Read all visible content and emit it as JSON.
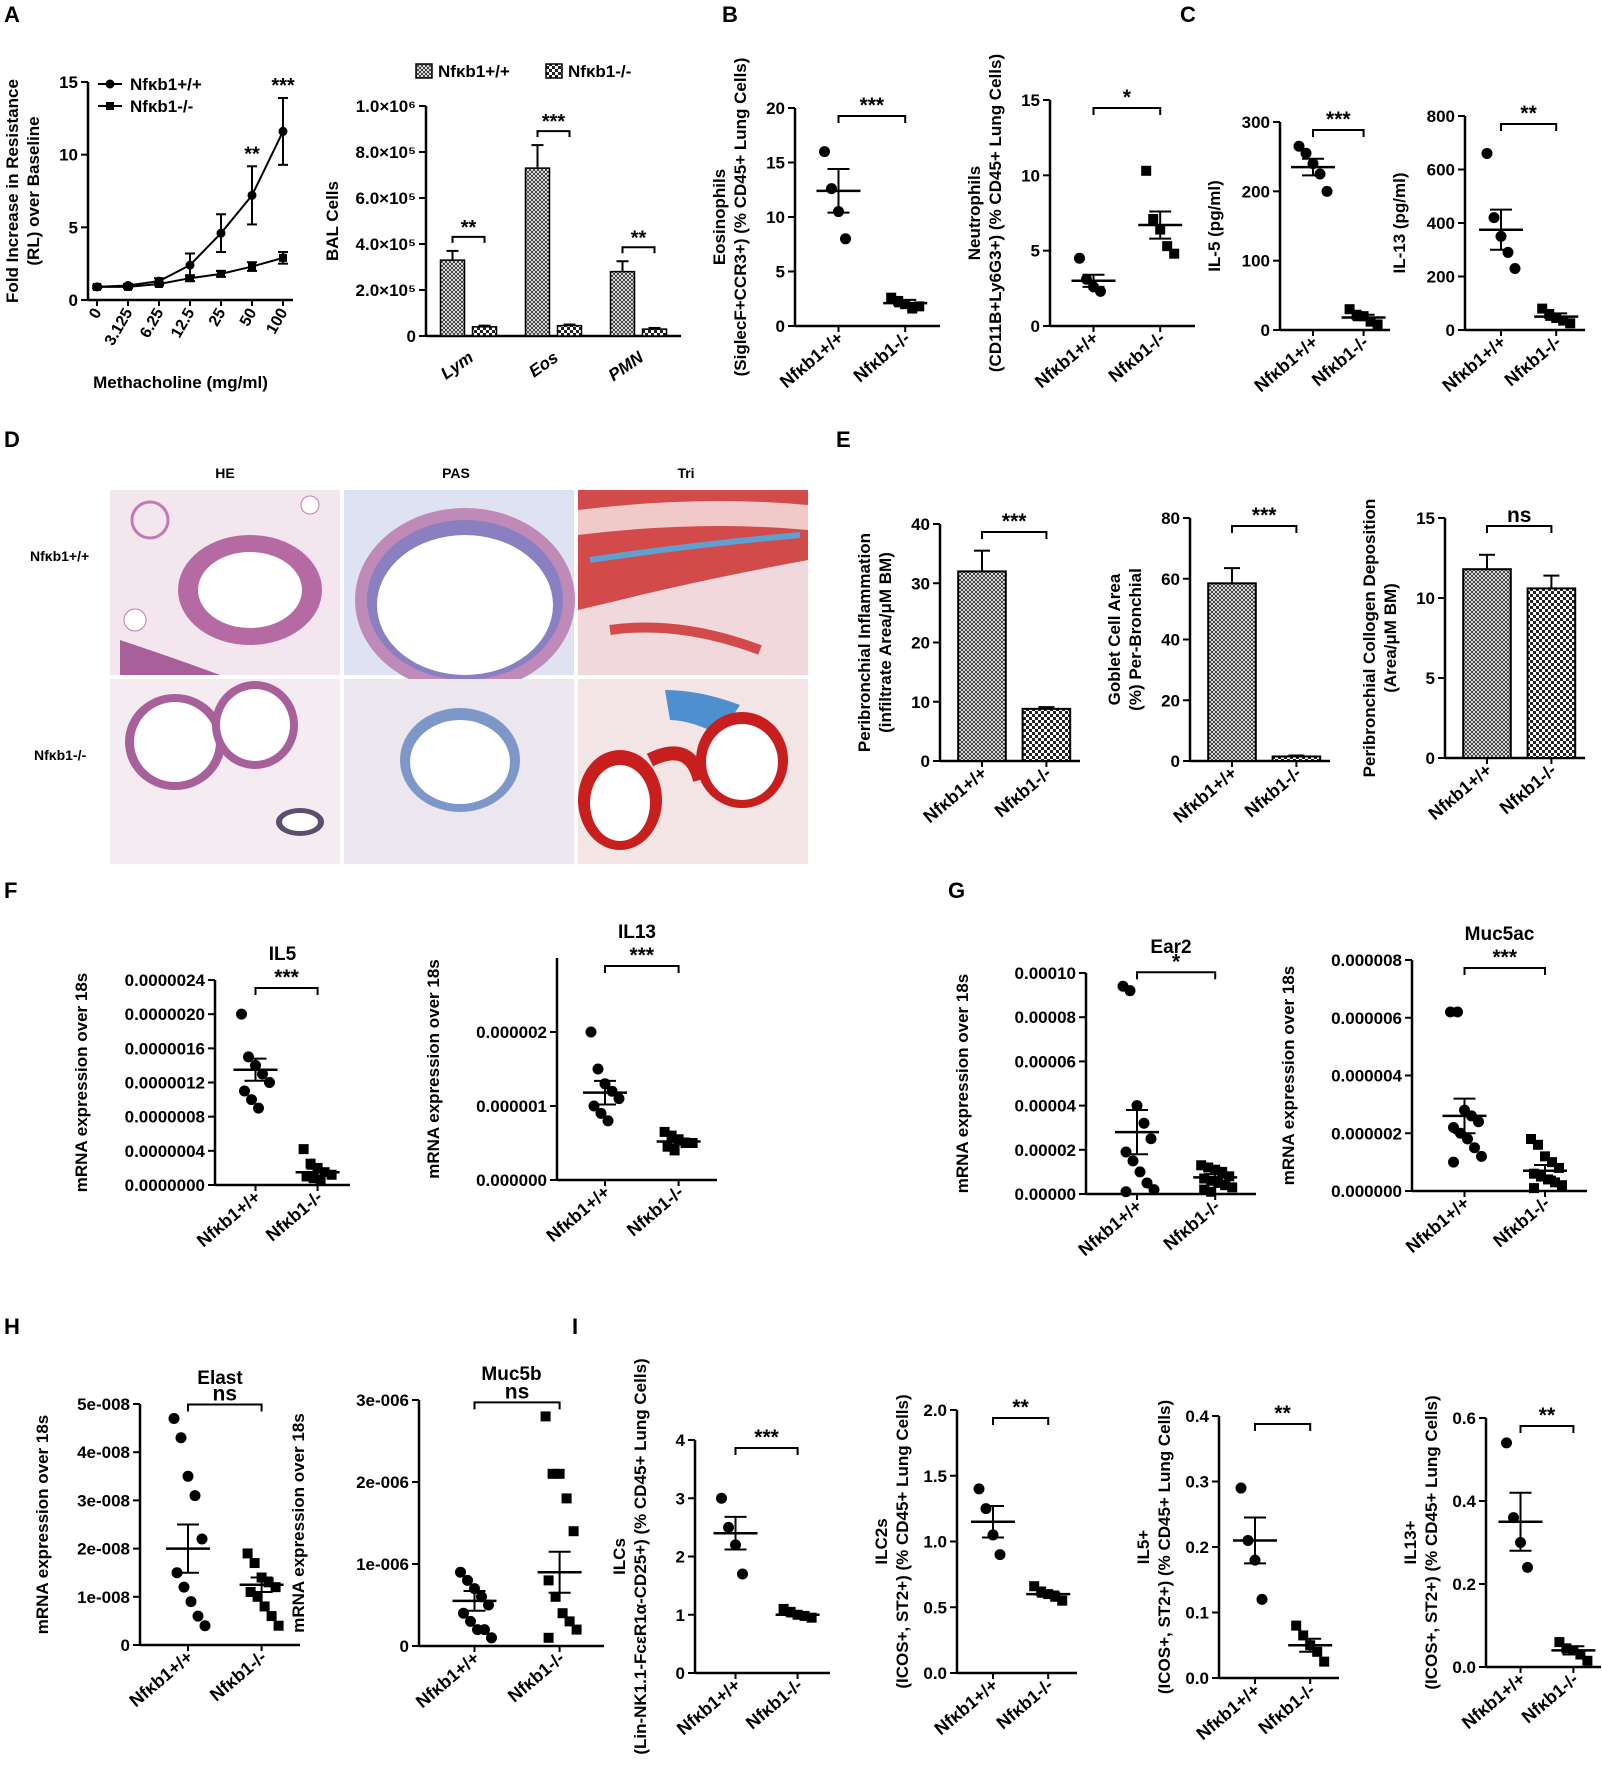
{
  "colors": {
    "ink": "#000000",
    "hatch_bg": "#ffffff",
    "tissue_pink": "#c47ab0",
    "tissue_blue": "#7d97c9",
    "tissue_red": "#d24a4a"
  },
  "panel_letters": {
    "A": "A",
    "B": "B",
    "C": "C",
    "D": "D",
    "E": "E",
    "F": "F",
    "G": "G",
    "H": "H",
    "I": "I"
  },
  "histology": {
    "columns": [
      "HE",
      "PAS",
      "Tri"
    ],
    "rows": [
      "Nfκb1+/+",
      "Nfκb1-/-"
    ]
  },
  "chart_data": [
    {
      "id": "A1",
      "type": "line",
      "x": [
        "0",
        "3.125",
        "6.25",
        "12.5",
        "25",
        "50",
        "100"
      ],
      "xlabel": "Methacholine (mg/ml)",
      "ylabel": "Fold Increase in Resistance (RL) over Baseline",
      "ylim": [
        0,
        15
      ],
      "yticks": [
        "0",
        "5",
        "10",
        "15"
      ],
      "legend": "top-left",
      "series": [
        {
          "name": "Nfκb1+/+",
          "marker": "circle",
          "values": [
            0.9,
            1.0,
            1.3,
            2.4,
            4.6,
            7.2,
            11.6
          ],
          "err": [
            0.1,
            0.1,
            0.2,
            0.8,
            1.3,
            2.0,
            2.3
          ]
        },
        {
          "name": "Nfκb1-/-",
          "marker": "square",
          "values": [
            0.9,
            0.9,
            1.1,
            1.5,
            1.8,
            2.3,
            2.9
          ],
          "err": [
            0.1,
            0.1,
            0.1,
            0.2,
            0.2,
            0.3,
            0.4
          ]
        }
      ],
      "annotations": [
        {
          "at": 5,
          "text": "**"
        },
        {
          "at": 6,
          "text": "***"
        }
      ]
    },
    {
      "id": "A2",
      "type": "bar",
      "categories": [
        "Lym",
        "Eos",
        "PMN"
      ],
      "ylabel": "BAL Cells",
      "ylim": [
        0,
        1000000
      ],
      "yticks": [
        "0",
        "2.0×10⁵",
        "4.0×10⁵",
        "6.0×10⁵",
        "8.0×10⁵",
        "1.0×10⁶"
      ],
      "legend": "top",
      "series": [
        {
          "name": "Nfκb1+/+",
          "values": [
            330000,
            730000,
            280000
          ],
          "err": [
            40000,
            100000,
            45000
          ]
        },
        {
          "name": "Nfκb1-/-",
          "values": [
            40000,
            45000,
            30000
          ],
          "err": [
            5000,
            5000,
            5000
          ]
        }
      ],
      "annotations": [
        "**",
        "***",
        "**"
      ]
    },
    {
      "id": "B1",
      "type": "scatter",
      "categories": [
        "Nfκb1+/+",
        "Nfκb1-/-"
      ],
      "ylabel": "Eosinophils (SiglecF+CCR3+) (% CD45+ Lung Cells)",
      "ylim": [
        0,
        20
      ],
      "yticks": [
        "0",
        "5",
        "10",
        "15",
        "20"
      ],
      "points": [
        [
          16.0,
          12.6,
          10.5,
          8.0
        ],
        [
          2.6,
          2.3,
          2.0,
          1.6,
          1.8
        ]
      ],
      "mean": [
        12.4,
        2.1
      ],
      "sem": [
        2.0,
        0.3
      ],
      "sig": "***"
    },
    {
      "id": "B2",
      "type": "scatter",
      "categories": [
        "Nfκb1+/+",
        "Nfκb1-/-"
      ],
      "ylabel": "Neutrophils (CD11B+Ly6G3+) (% CD45+ Lung Cells)",
      "ylim": [
        0,
        15
      ],
      "yticks": [
        "0",
        "5",
        "10",
        "15"
      ],
      "points": [
        [
          4.5,
          3.1,
          2.6,
          2.3
        ],
        [
          10.3,
          7.1,
          6.4,
          5.3,
          4.8
        ]
      ],
      "mean": [
        3.0,
        6.7
      ],
      "sem": [
        0.4,
        0.9
      ],
      "sig": "*"
    },
    {
      "id": "C1",
      "type": "scatter",
      "categories": [
        "Nfκb1+/+",
        "Nfκb1-/-"
      ],
      "ylabel": "IL-5 (pg/ml)",
      "ylim": [
        0,
        300
      ],
      "yticks": [
        "0",
        "100",
        "200",
        "300"
      ],
      "points": [
        [
          265,
          255,
          240,
          225,
          200
        ],
        [
          30,
          22,
          20,
          12,
          8
        ]
      ],
      "mean": [
        235,
        18
      ],
      "sem": [
        12,
        4
      ],
      "sig": "***"
    },
    {
      "id": "C2",
      "type": "scatter",
      "categories": [
        "Nfκb1+/+",
        "Nfκb1-/-"
      ],
      "ylabel": "IL-13 (pg/ml)",
      "ylim": [
        0,
        800
      ],
      "yticks": [
        "0",
        "200",
        "400",
        "600",
        "800"
      ],
      "points": [
        [
          660,
          420,
          350,
          290,
          230
        ],
        [
          80,
          60,
          45,
          35,
          25
        ]
      ],
      "mean": [
        375,
        50
      ],
      "sem": [
        75,
        12
      ],
      "sig": "**"
    },
    {
      "id": "E1",
      "type": "bar",
      "categories": [
        "Nfκb1+/+",
        "Nfκb1-/-"
      ],
      "ylabel": "Peribronchial Inflammation (infiltrate Area/μM BM)",
      "ylim": [
        0,
        40
      ],
      "yticks": [
        "0",
        "10",
        "20",
        "30",
        "40"
      ],
      "values": [
        32.0,
        8.8
      ],
      "err": [
        3.5,
        0.3
      ],
      "sig": "***"
    },
    {
      "id": "E2",
      "type": "bar",
      "categories": [
        "Nfκb1+/+",
        "Nfκb1-/-"
      ],
      "ylabel": "Goblet Cell Area (%) Per-Bronchial",
      "ylim": [
        0,
        80
      ],
      "yticks": [
        "0",
        "20",
        "40",
        "60",
        "80"
      ],
      "values": [
        58.5,
        1.5
      ],
      "err": [
        5.0,
        0.3
      ],
      "sig": "***"
    },
    {
      "id": "E3",
      "type": "bar",
      "categories": [
        "Nfκb1+/+",
        "Nfκb1-/-"
      ],
      "ylabel": "Peribronchial Collogen Deposition (Area/μM BM)",
      "ylim": [
        0,
        15
      ],
      "yticks": [
        "0",
        "5",
        "10",
        "15"
      ],
      "values": [
        11.8,
        10.6
      ],
      "err": [
        0.9,
        0.8
      ],
      "sig": "ns"
    },
    {
      "id": "F1",
      "type": "scatter",
      "title": "IL5",
      "categories": [
        "Nfκb1+/+",
        "Nfκb1-/-"
      ],
      "ylabel": "mRNA expression over 18s",
      "ylim": [
        0,
        2.4e-06
      ],
      "yticks": [
        "0.0000000",
        "0.0000004",
        "0.0000008",
        "0.0000012",
        "0.0000016",
        "0.0000020",
        "0.0000024"
      ],
      "points": [
        [
          2e-06,
          1.5e-06,
          1.4e-06,
          1.3e-06,
          1.2e-06,
          1.1e-06,
          1e-06,
          9e-07
        ],
        [
          4.2e-07,
          2.5e-07,
          2e-07,
          1.5e-07,
          1.2e-07,
          1e-07,
          8e-08,
          5e-08
        ]
      ],
      "mean": [
        1.35e-06,
        1.5e-07
      ],
      "sem": [
        1.3e-07,
        4e-08
      ],
      "sig": "***"
    },
    {
      "id": "F2",
      "type": "scatter",
      "title": "IL13",
      "categories": [
        "Nfκb1+/+",
        "Nfκb1-/-"
      ],
      "ylabel": "mRNA expression over 18s",
      "ylim": [
        -9e-07,
        2.1e-06
      ],
      "yticks": [
        "0.000000",
        "0.000001",
        "0.000002"
      ],
      "ytickvals": [
        -9e-07,
        1e-07,
        1.1e-06
      ],
      "points": [
        [
          1.1e-06,
          6e-07,
          4e-07,
          3e-07,
          2e-07,
          1e-07,
          0.0,
          -1e-07
        ],
        [
          -2.5e-07,
          -3e-07,
          -3.5e-07,
          -4e-07,
          -4e-07,
          -4.5e-07,
          -5e-07
        ]
      ],
      "mean": [
        2.8e-07,
        -3.8e-07
      ],
      "sem": [
        1.6e-07,
        4e-08
      ],
      "sig": "***"
    },
    {
      "id": "G1",
      "type": "scatter",
      "title": "Ear2",
      "categories": [
        "Nfκb1+/+",
        "Nfκb1-/-"
      ],
      "ylabel": "mRNA expression over 18s",
      "ylim": [
        0,
        0.0001
      ],
      "yticks": [
        "0.00000",
        "0.00002",
        "0.00004",
        "0.00006",
        "0.00008",
        "0.00010"
      ],
      "points": [
        [
          9.4e-05,
          9.2e-05,
          4e-05,
          3.2e-05,
          2.5e-05,
          1.9e-05,
          1.5e-05,
          1e-05,
          5e-06,
          2e-06,
          1e-06
        ],
        [
          1.3e-05,
          1.2e-05,
          1.1e-05,
          1e-05,
          8e-06,
          7e-06,
          6e-06,
          5e-06,
          4e-06,
          3e-06,
          2e-06,
          1e-06
        ]
      ],
      "mean": [
        2.8e-05,
        7.5e-06
      ],
      "sem": [
        1e-05,
        1.5e-06
      ],
      "sig": "*"
    },
    {
      "id": "G2",
      "type": "scatter",
      "title": "Muc5ac",
      "categories": [
        "Nfκb1+/+",
        "Nfκb1-/-"
      ],
      "ylabel": "mRNA expression over 18s",
      "ylim": [
        0,
        8e-06
      ],
      "yticks": [
        "0.000000",
        "0.000002",
        "0.000004",
        "0.000006",
        "0.000008"
      ],
      "points": [
        [
          6.2e-06,
          6.2e-06,
          2.8e-06,
          2.6e-06,
          2.4e-06,
          2.2e-06,
          2e-06,
          1.8e-06,
          1.5e-06,
          1.2e-06,
          1e-06
        ],
        [
          1.8e-06,
          1.6e-06,
          1.2e-06,
          1e-06,
          8e-07,
          6e-07,
          5e-07,
          4e-07,
          3e-07,
          2e-07,
          1e-07
        ]
      ],
      "mean": [
        2.6e-06,
        7e-07
      ],
      "sem": [
        6e-07,
        2e-07
      ],
      "sig": "***"
    },
    {
      "id": "H1",
      "type": "scatter",
      "title": "Elast",
      "categories": [
        "Nfκb1+/+",
        "Nfκb1-/-"
      ],
      "ylabel": "mRNA expression over 18s",
      "ylim": [
        0,
        5e-08
      ],
      "yticks": [
        "0",
        "1e-008",
        "2e-008",
        "3e-008",
        "4e-008",
        "5e-008"
      ],
      "points": [
        [
          4.7e-08,
          4.3e-08,
          3.5e-08,
          3.1e-08,
          2.2e-08,
          1.5e-08,
          1.2e-08,
          9e-09,
          6e-09,
          4e-09
        ],
        [
          1.9e-08,
          1.7e-08,
          1.4e-08,
          1.3e-08,
          1.2e-08,
          1.1e-08,
          1e-08,
          8e-09,
          6e-09,
          4e-09
        ]
      ],
      "mean": [
        2e-08,
        1.25e-08
      ],
      "sem": [
        5e-09,
        1.5e-09
      ],
      "sig": "ns"
    },
    {
      "id": "H2",
      "type": "scatter",
      "title": "Muc5b",
      "categories": [
        "Nfκb1+/+",
        "Nfκb1-/-"
      ],
      "ylabel": "mRNA expression over 18s",
      "ylim": [
        0,
        3e-06
      ],
      "yticks": [
        "0",
        "1e-006",
        "2e-006",
        "3e-006"
      ],
      "points": [
        [
          9e-07,
          8e-07,
          7e-07,
          6e-07,
          5e-07,
          4e-07,
          3e-07,
          2e-07,
          2e-07,
          1e-07
        ],
        [
          2.8e-06,
          2.1e-06,
          2.1e-06,
          1.8e-06,
          1.4e-06,
          8e-07,
          6e-07,
          4e-07,
          3e-07,
          2e-07,
          1e-07
        ]
      ],
      "mean": [
        5.5e-07,
        9e-07
      ],
      "sem": [
        1.2e-07,
        2.5e-07
      ],
      "sig": "ns"
    },
    {
      "id": "I1",
      "type": "scatter",
      "categories": [
        "Nfκb1+/+",
        "Nfκb1-/-"
      ],
      "ylabel": "ILCs (Lin-NK1.1-FcεR1α-CD25+) (% CD45+ Lung Cells)",
      "ylim": [
        0,
        4
      ],
      "yticks": [
        "0",
        "1",
        "2",
        "3",
        "4"
      ],
      "points": [
        [
          3.0,
          2.5,
          2.2,
          1.7
        ],
        [
          1.1,
          1.05,
          1.0,
          0.98,
          0.95
        ]
      ],
      "mean": [
        2.4,
        1.0
      ],
      "sem": [
        0.28,
        0.03
      ],
      "sig": "***"
    },
    {
      "id": "I2",
      "type": "scatter",
      "categories": [
        "Nfκb1+/+",
        "Nfκb1-/-"
      ],
      "ylabel": "ILC2s (ICOS+, ST2+) (% CD45+ Lung Cells)",
      "ylim": [
        0,
        2.0
      ],
      "yticks": [
        "0.0",
        "0.5",
        "1.0",
        "1.5",
        "2.0"
      ],
      "points": [
        [
          1.4,
          1.25,
          1.05,
          0.9
        ],
        [
          0.66,
          0.62,
          0.6,
          0.58,
          0.55
        ]
      ],
      "mean": [
        1.15,
        0.6
      ],
      "sem": [
        0.12,
        0.02
      ],
      "sig": "**"
    },
    {
      "id": "I3",
      "type": "scatter",
      "categories": [
        "Nfκb1+/+",
        "Nfκb1-/-"
      ],
      "ylabel": "IL5+ (ICOS+, ST2+) (% CD45+ Lung Cells)",
      "ylim": [
        0,
        0.4
      ],
      "yticks": [
        "0.0",
        "0.1",
        "0.2",
        "0.3",
        "0.4"
      ],
      "points": [
        [
          0.29,
          0.21,
          0.18,
          0.12
        ],
        [
          0.08,
          0.065,
          0.05,
          0.04,
          0.025
        ]
      ],
      "mean": [
        0.21,
        0.05
      ],
      "sem": [
        0.035,
        0.01
      ],
      "sig": "**"
    },
    {
      "id": "I4",
      "type": "scatter",
      "categories": [
        "Nfκb1+/+",
        "Nfκb1-/-"
      ],
      "ylabel": "IL13+ (ICOS+, ST2+) (% CD45+ Lung Cells)",
      "ylim": [
        0,
        0.6
      ],
      "yticks": [
        "0.0",
        "0.2",
        "0.4",
        "0.6"
      ],
      "points": [
        [
          0.54,
          0.36,
          0.3,
          0.24
        ],
        [
          0.06,
          0.045,
          0.04,
          0.03,
          0.015
        ]
      ],
      "mean": [
        0.35,
        0.04
      ],
      "sem": [
        0.07,
        0.01
      ],
      "sig": "**"
    }
  ]
}
